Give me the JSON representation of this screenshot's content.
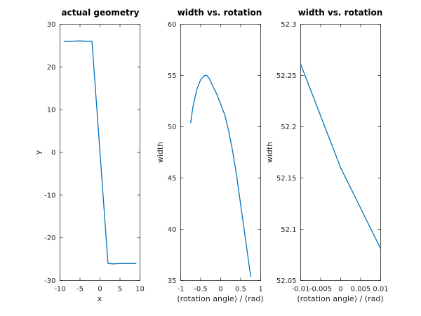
{
  "colors": {
    "series": "#0072bd",
    "axis": "#262626"
  },
  "chart_data": [
    {
      "type": "line",
      "title": "actual geometry",
      "xlabel": "x",
      "ylabel": "y",
      "xlim": [
        -10,
        10
      ],
      "ylim": [
        -30,
        30
      ],
      "xticks": [
        -10,
        -5,
        0,
        5,
        10
      ],
      "xtick_labels": [
        "-10",
        "-5",
        "0",
        "5",
        "10"
      ],
      "yticks": [
        -30,
        -20,
        -10,
        0,
        10,
        20,
        30
      ],
      "ytick_labels": [
        "-30",
        "-20",
        "-10",
        "0",
        "10",
        "20",
        "30"
      ],
      "grid": false,
      "series": [
        {
          "x": [
            -9,
            -7,
            -5,
            -3.5,
            -2,
            2,
            3.5,
            5,
            7,
            9
          ],
          "y": [
            26.0,
            26.0,
            26.1,
            26.0,
            26.0,
            -26.0,
            -26.1,
            -26.0,
            -26.0,
            -26.0
          ]
        }
      ]
    },
    {
      "type": "line",
      "title": "width vs. rotation",
      "xlabel": "(rotation angle) / (rad)",
      "ylabel": "width",
      "xlim": [
        -1,
        1
      ],
      "ylim": [
        35,
        60
      ],
      "xticks": [
        -1,
        -0.5,
        0,
        0.5,
        1
      ],
      "xtick_labels": [
        "-1",
        "-0.5",
        "0",
        "0.5",
        "1"
      ],
      "yticks": [
        35,
        40,
        45,
        50,
        55,
        60
      ],
      "ytick_labels": [
        "35",
        "40",
        "45",
        "50",
        "55",
        "60"
      ],
      "grid": false,
      "series": [
        {
          "x": [
            -0.75,
            -0.7,
            -0.6,
            -0.5,
            -0.4,
            -0.35,
            -0.3,
            -0.2,
            -0.1,
            0,
            0.1,
            0.2,
            0.3,
            0.4,
            0.5,
            0.6,
            0.7,
            0.75
          ],
          "y": [
            50.4,
            51.8,
            53.6,
            54.6,
            55.0,
            55.0,
            54.8,
            54.0,
            53.2,
            52.2,
            51.2,
            49.6,
            47.6,
            45.2,
            42.4,
            39.6,
            36.8,
            35.4
          ]
        }
      ]
    },
    {
      "type": "line",
      "title": "width vs. rotation",
      "xlabel": "(rotation angle) / (rad)",
      "ylabel": "width",
      "xlim": [
        -0.01,
        0.01
      ],
      "ylim": [
        52.05,
        52.3
      ],
      "xticks": [
        -0.01,
        -0.005,
        0,
        0.005,
        0.01
      ],
      "xtick_labels": [
        "-0.01",
        "-0.005",
        "0",
        "0.005",
        "0.01"
      ],
      "yticks": [
        52.05,
        52.1,
        52.15,
        52.2,
        52.25,
        52.3
      ],
      "ytick_labels": [
        "52.05",
        "52.1",
        "52.15",
        "52.2",
        "52.25",
        "52.3"
      ],
      "grid": false,
      "series": [
        {
          "x": [
            -0.01,
            0,
            0.01
          ],
          "y": [
            52.261,
            52.16,
            52.081
          ]
        }
      ]
    }
  ]
}
